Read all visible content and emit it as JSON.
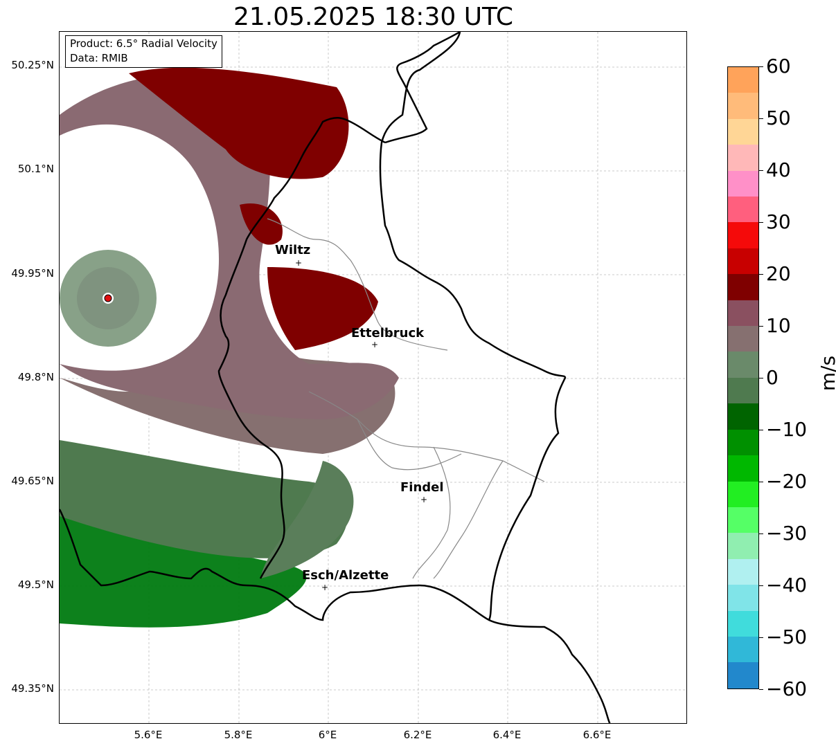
{
  "title": "21.05.2025 18:30 UTC",
  "info": {
    "product": "Product: 6.5° Radial Velocity",
    "data": "Data: RMIB"
  },
  "axes": {
    "lat_labels": [
      "50.25°N",
      "50.1°N",
      "49.95°N",
      "49.8°N",
      "49.65°N",
      "49.5°N",
      "49.35°N"
    ],
    "lon_labels": [
      "5.6°E",
      "5.8°E",
      "6°E",
      "6.2°E",
      "6.4°E",
      "6.6°E"
    ]
  },
  "cities": [
    {
      "name": "Wiltz"
    },
    {
      "name": "Ettelbruck"
    },
    {
      "name": "Findel"
    },
    {
      "name": "Esch/Alzette"
    }
  ],
  "colorbar": {
    "unit": "m/s",
    "ticks": [
      "60",
      "50",
      "40",
      "30",
      "20",
      "10",
      "0",
      "−10",
      "−20",
      "−30",
      "−40",
      "−50",
      "−60"
    ],
    "range": [
      -60,
      60
    ],
    "colors_top_to_bottom": [
      "#ffa35a",
      "#ffbb7a",
      "#ffd696",
      "#ffb8b8",
      "#ff90c8",
      "#ff5f7e",
      "#f50a0a",
      "#c80000",
      "#7f0000",
      "#8a5060",
      "#867070",
      "#6a8a6a",
      "#4f7a4f",
      "#006400",
      "#009000",
      "#00b800",
      "#22ee22",
      "#55ff66",
      "#90eeb0",
      "#b0f0f0",
      "#80e4e8",
      "#40dcdc",
      "#30b8d8",
      "#2288cc"
    ]
  },
  "colors": {
    "approach_strong": "#007a10",
    "approach_weak": "#5a7e5a",
    "neutral": "#867070",
    "recede_weak": "#8a5060",
    "recede_strong": "#7f0000",
    "radar_site": "#e01010"
  }
}
